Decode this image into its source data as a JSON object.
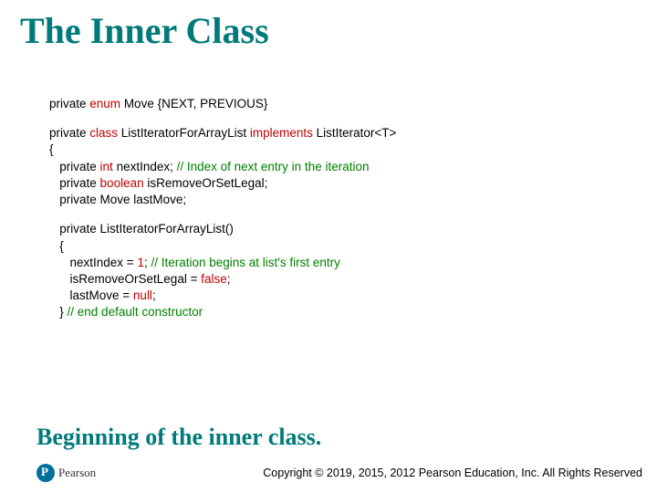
{
  "title": {
    "text": "The Inner Class",
    "color": "#007a7a",
    "fontsize": 40
  },
  "code": {
    "fontsize": 13.5,
    "color_default": "#000000",
    "color_keyword": "#c00000",
    "color_comment": "#008000",
    "lines": [
      {
        "indent": 0,
        "segments": [
          {
            "t": "private ",
            "c": "default"
          },
          {
            "t": "enum ",
            "c": "keyword"
          },
          {
            "t": "Move {NEXT, PREVIOUS}",
            "c": "default"
          }
        ]
      },
      {
        "blank": true
      },
      {
        "indent": 0,
        "segments": [
          {
            "t": "private ",
            "c": "default"
          },
          {
            "t": "class ",
            "c": "keyword"
          },
          {
            "t": "ListIteratorForArrayList ",
            "c": "default"
          },
          {
            "t": "implements ",
            "c": "keyword"
          },
          {
            "t": "ListIterator<T>",
            "c": "default"
          }
        ]
      },
      {
        "indent": 0,
        "segments": [
          {
            "t": "{",
            "c": "default"
          }
        ]
      },
      {
        "indent": 1,
        "segments": [
          {
            "t": "private ",
            "c": "default"
          },
          {
            "t": "int ",
            "c": "keyword"
          },
          {
            "t": "nextIndex; ",
            "c": "default"
          },
          {
            "t": "// Index of next entry in the iteration",
            "c": "comment"
          }
        ]
      },
      {
        "indent": 1,
        "segments": [
          {
            "t": "private ",
            "c": "default"
          },
          {
            "t": "boolean ",
            "c": "keyword"
          },
          {
            "t": "isRemoveOrSetLegal;",
            "c": "default"
          }
        ]
      },
      {
        "indent": 1,
        "segments": [
          {
            "t": "private ",
            "c": "default"
          },
          {
            "t": "Move lastMove;",
            "c": "default"
          }
        ]
      },
      {
        "blank": true
      },
      {
        "indent": 1,
        "segments": [
          {
            "t": "private ",
            "c": "default"
          },
          {
            "t": "ListIteratorForArrayList()",
            "c": "default"
          }
        ]
      },
      {
        "indent": 1,
        "segments": [
          {
            "t": "{",
            "c": "default"
          }
        ]
      },
      {
        "indent": 2,
        "segments": [
          {
            "t": "nextIndex = ",
            "c": "default"
          },
          {
            "t": "1",
            "c": "keyword"
          },
          {
            "t": "; ",
            "c": "default"
          },
          {
            "t": "// Iteration begins at list's first entry",
            "c": "comment"
          }
        ]
      },
      {
        "indent": 2,
        "segments": [
          {
            "t": "isRemoveOrSetLegal = ",
            "c": "default"
          },
          {
            "t": "false",
            "c": "keyword"
          },
          {
            "t": ";",
            "c": "default"
          }
        ]
      },
      {
        "indent": 2,
        "segments": [
          {
            "t": "lastMove = ",
            "c": "default"
          },
          {
            "t": "null",
            "c": "keyword"
          },
          {
            "t": ";",
            "c": "default"
          }
        ]
      },
      {
        "indent": 1,
        "segments": [
          {
            "t": "} ",
            "c": "default"
          },
          {
            "t": "// end default constructor",
            "c": "comment"
          }
        ]
      }
    ],
    "indent_unit": "   "
  },
  "caption": {
    "text": "Beginning of the inner class.",
    "color": "#007a7a",
    "fontsize": 26
  },
  "footer": {
    "brand": "Pearson",
    "brand_circle_color": "#006f9e",
    "copyright": "Copyright © 2019, 2015, 2012 Pearson Education, Inc. All Rights Reserved"
  }
}
